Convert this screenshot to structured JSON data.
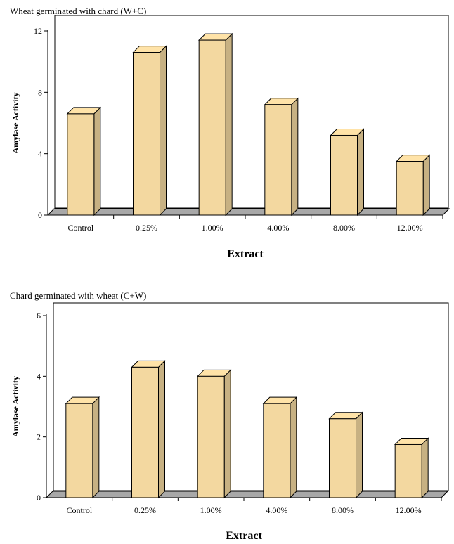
{
  "chart_data": [
    {
      "type": "bar",
      "title": "Wheat germinated with chard (W+C)",
      "xlabel": "Extract",
      "ylabel": "Amylase Activity",
      "categories": [
        "Control",
        "0.25%",
        "1.00%",
        "4.00%",
        "8.00%",
        "12.00%"
      ],
      "values": [
        6.6,
        10.6,
        11.4,
        7.2,
        5.2,
        3.5
      ],
      "ylim": [
        0,
        12
      ],
      "yticks": [
        0,
        4,
        8,
        12
      ],
      "grid": false,
      "bar_color": "#f3d8a0",
      "style": "3d-column"
    },
    {
      "type": "bar",
      "title": "Chard germinated with wheat (C+W)",
      "xlabel": "Extract",
      "ylabel": "Amylase Activity",
      "categories": [
        "Control",
        "0.25%",
        "1.00%",
        "4.00%",
        "8.00%",
        "12.00%"
      ],
      "values": [
        3.1,
        4.3,
        4.0,
        3.1,
        2.6,
        1.75
      ],
      "ylim": [
        0,
        6
      ],
      "yticks": [
        0,
        2,
        4,
        6
      ],
      "grid": false,
      "bar_color": "#f3d8a0",
      "style": "3d-column"
    }
  ]
}
